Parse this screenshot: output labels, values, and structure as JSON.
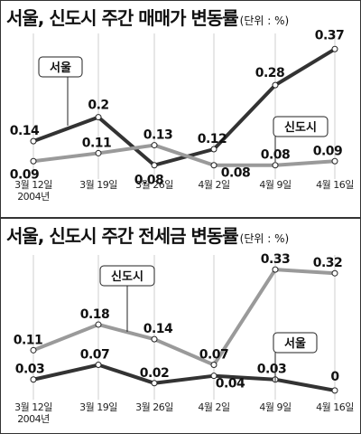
{
  "chart_data": [
    {
      "type": "line",
      "title": "서울, 신도시 주간 매매가 변동률",
      "unit": "(단위 : %)",
      "categories": [
        "3월 12일",
        "3월 19일",
        "3월 26일",
        "4월 2일",
        "4월 9일",
        "4월 16일"
      ],
      "year_label": "2004년",
      "series": [
        {
          "name": "서울",
          "values": [
            0.14,
            0.2,
            0.08,
            0.12,
            0.28,
            0.37
          ],
          "color": "#333333"
        },
        {
          "name": "신도시",
          "values": [
            0.09,
            0.11,
            0.13,
            0.08,
            0.08,
            0.09
          ],
          "color": "#9a9a9a"
        }
      ],
      "ylim": [
        0.05,
        0.4
      ],
      "grid": false
    },
    {
      "type": "line",
      "title": "서울, 신도시 주간 전세금 변동률",
      "unit": "(단위 : %)",
      "categories": [
        "3월 12일",
        "3월 19일",
        "3월 26일",
        "4월 2일",
        "4월 9일",
        "4월 16일"
      ],
      "year_label": "2004년",
      "series": [
        {
          "name": "서울",
          "values": [
            0.03,
            0.07,
            0.02,
            0.04,
            0.03,
            0
          ],
          "color": "#333333"
        },
        {
          "name": "신도시",
          "values": [
            0.11,
            0.18,
            0.14,
            0.07,
            0.33,
            0.32
          ],
          "color": "#9a9a9a"
        }
      ],
      "ylim": [
        -0.02,
        0.36
      ],
      "grid": false
    }
  ]
}
